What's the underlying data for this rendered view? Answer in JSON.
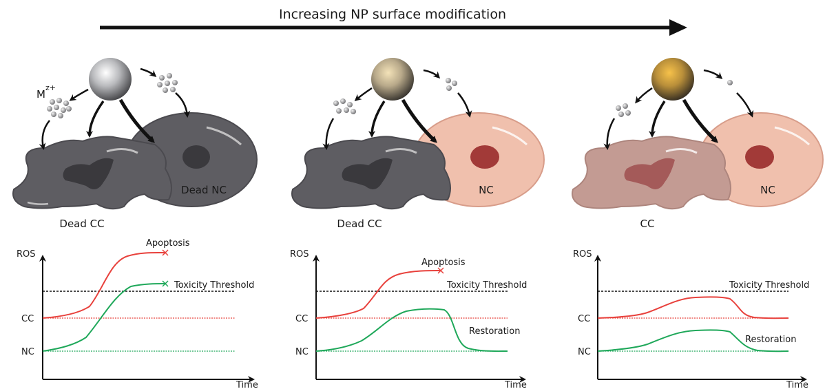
{
  "figure": {
    "title": "Increasing NP surface modification",
    "ion_label": "M",
    "ion_superscript": "z+"
  },
  "panels": [
    {
      "cell_labels": {
        "cancer": "Dead CC",
        "normal": "Dead NC"
      },
      "graph": {
        "y_axis_label": "ROS",
        "x_axis_label": "Time",
        "threshold_label": "Toxicity Threshold",
        "cc_label": "CC",
        "nc_label": "NC",
        "annotation": "Apoptosis",
        "restoration_label": ""
      }
    },
    {
      "cell_labels": {
        "cancer": "Dead CC",
        "normal": "NC"
      },
      "graph": {
        "y_axis_label": "ROS",
        "x_axis_label": "Time",
        "threshold_label": "Toxicity Threshold",
        "cc_label": "CC",
        "nc_label": "NC",
        "annotation": "Apoptosis",
        "restoration_label": "Restoration"
      }
    },
    {
      "cell_labels": {
        "cancer": "CC",
        "normal": "NC"
      },
      "graph": {
        "y_axis_label": "ROS",
        "x_axis_label": "Time",
        "threshold_label": "Toxicity Threshold",
        "cc_label": "CC",
        "nc_label": "NC",
        "annotation": "",
        "restoration_label": "Restoration"
      }
    }
  ],
  "colors": {
    "cc_curve": "#e8413c",
    "nc_curve": "#1fa85a",
    "dead_cell": "#5e5d62",
    "dead_nucleus": "#3a393d",
    "live_normal_cell": "#f0c0ad",
    "live_normal_nucleus": "#a23a38",
    "live_cancer_cell": "#c39b93",
    "live_cancer_nucleus": "#a45a59",
    "np_silver": "#c8c9cc",
    "np_gold": "#e6b649"
  }
}
